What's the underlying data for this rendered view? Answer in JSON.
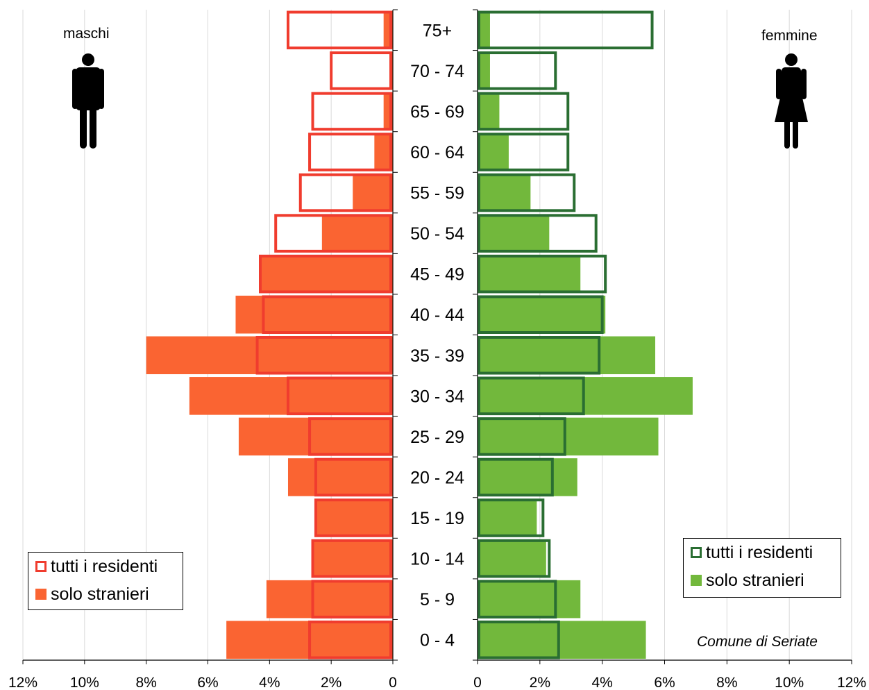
{
  "chart_data": {
    "type": "bar",
    "subtype": "population-pyramid",
    "categories": [
      "0 - 4",
      "5 - 9",
      "10 - 14",
      "15 - 19",
      "20 - 24",
      "25 - 29",
      "30 - 34",
      "35 - 39",
      "40 - 44",
      "45 - 49",
      "50 - 54",
      "55 - 59",
      "60 - 64",
      "65 - 69",
      "70 - 74",
      "75+"
    ],
    "x_ticks": [
      "12%",
      "10%",
      "8%",
      "6%",
      "4%",
      "2%",
      "0",
      "0",
      "2%",
      "4%",
      "6%",
      "8%",
      "10%",
      "12%"
    ],
    "xlim": [
      0,
      12
    ],
    "grid": "vertical",
    "left_panel": {
      "label": "maschi",
      "series": [
        {
          "name": "tutti i residenti",
          "values": [
            2.7,
            2.6,
            2.6,
            2.5,
            2.5,
            2.7,
            3.4,
            4.4,
            4.2,
            4.3,
            3.8,
            3.0,
            2.7,
            2.6,
            2.0,
            3.4
          ]
        },
        {
          "name": "solo stranieri",
          "values": [
            5.4,
            4.1,
            2.6,
            2.5,
            3.4,
            5.0,
            6.6,
            8.0,
            5.1,
            4.3,
            2.3,
            1.3,
            0.6,
            0.3,
            0.1,
            0.3
          ]
        }
      ]
    },
    "right_panel": {
      "label": "femmine",
      "series": [
        {
          "name": "tutti i residenti",
          "values": [
            2.6,
            2.5,
            2.3,
            2.1,
            2.4,
            2.8,
            3.4,
            3.9,
            4.0,
            4.1,
            3.8,
            3.1,
            2.9,
            2.9,
            2.5,
            5.6
          ]
        },
        {
          "name": "solo stranieri",
          "values": [
            5.4,
            3.3,
            2.2,
            1.9,
            3.2,
            5.8,
            6.9,
            5.7,
            4.1,
            3.3,
            2.3,
            1.7,
            1.0,
            0.7,
            0.4,
            0.4
          ]
        }
      ]
    },
    "annotation": "Comune di Seriate"
  },
  "colors": {
    "male_outline": "#f03c2e",
    "male_fill": "#fa6432",
    "female_outline": "#2a6e32",
    "female_fill": "#72b83c",
    "grid": "#d9d9d9"
  },
  "icons": {
    "male": "man-icon",
    "female": "woman-icon"
  }
}
